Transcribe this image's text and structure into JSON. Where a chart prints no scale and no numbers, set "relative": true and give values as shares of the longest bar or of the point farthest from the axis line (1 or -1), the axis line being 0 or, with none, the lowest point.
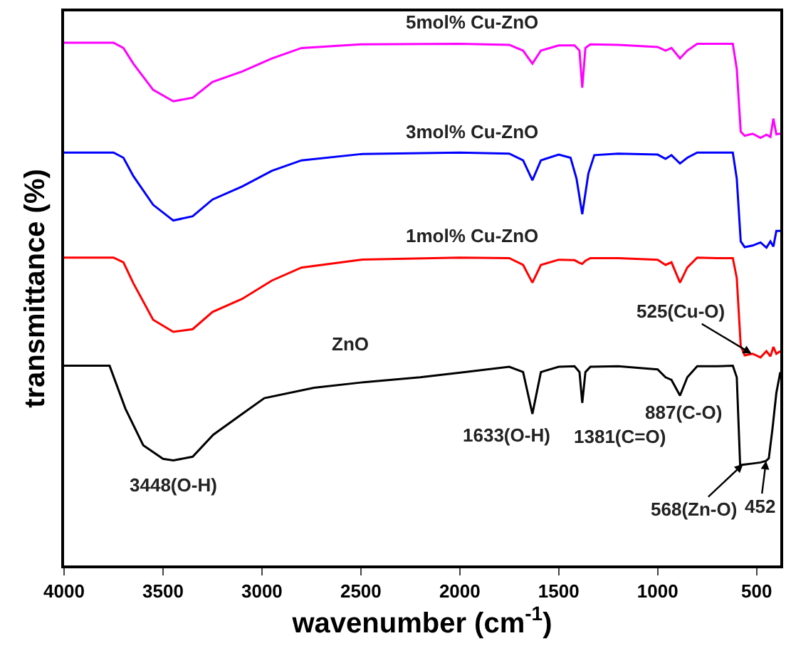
{
  "chart_data": {
    "type": "line",
    "relative": true,
    "xlabel": "wavenumber (cm$^{-1}$)",
    "ylabel": "transmittance (%)",
    "xlim": [
      4000,
      380
    ],
    "xticks": [
      4000,
      3500,
      3000,
      2500,
      2000,
      1500,
      1000,
      500
    ],
    "legend": false,
    "grid": false,
    "marker": "none",
    "line_style": "solid",
    "series": [
      {
        "name": "5mol% Cu-ZnO",
        "color": "#ff00ff",
        "x": [
          4000,
          3750,
          3700,
          3650,
          3550,
          3448,
          3350,
          3250,
          3100,
          2950,
          2800,
          2500,
          2000,
          1750,
          1680,
          1633,
          1590,
          1500,
          1420,
          1395,
          1381,
          1365,
          1340,
          1200,
          1000,
          960,
          930,
          887,
          850,
          800,
          700,
          620,
          600,
          580,
          560,
          520,
          480,
          450,
          430,
          415,
          400,
          380
        ],
        "values": [
          1,
          1,
          0.99,
          0.96,
          0.91,
          0.888,
          0.895,
          0.925,
          0.945,
          0.97,
          0.99,
          0.997,
          0.998,
          0.996,
          0.985,
          0.96,
          0.985,
          0.995,
          0.995,
          0.985,
          0.914,
          0.99,
          0.997,
          0.996,
          0.992,
          0.985,
          0.99,
          0.97,
          0.985,
          0.998,
          0.998,
          0.998,
          0.95,
          0.83,
          0.822,
          0.826,
          0.818,
          0.824,
          0.82,
          0.855,
          0.825,
          0.826
        ]
      },
      {
        "name": "3mol% Cu-ZnO",
        "color": "#0000ff",
        "x": [
          4000,
          3750,
          3700,
          3650,
          3550,
          3448,
          3350,
          3250,
          3100,
          2950,
          2800,
          2500,
          2000,
          1750,
          1680,
          1633,
          1590,
          1500,
          1440,
          1410,
          1381,
          1350,
          1320,
          1200,
          1000,
          960,
          930,
          887,
          850,
          800,
          700,
          620,
          600,
          580,
          560,
          520,
          480,
          450,
          430,
          415,
          400,
          380
        ],
        "values": [
          0.79,
          0.79,
          0.78,
          0.745,
          0.69,
          0.66,
          0.668,
          0.7,
          0.725,
          0.755,
          0.775,
          0.787,
          0.79,
          0.788,
          0.775,
          0.737,
          0.775,
          0.786,
          0.78,
          0.74,
          0.672,
          0.75,
          0.785,
          0.788,
          0.786,
          0.778,
          0.785,
          0.769,
          0.78,
          0.79,
          0.79,
          0.79,
          0.74,
          0.62,
          0.609,
          0.612,
          0.618,
          0.608,
          0.62,
          0.61,
          0.64,
          0.64
        ]
      },
      {
        "name": "1mol% Cu-ZnO",
        "color": "#ff0000",
        "x": [
          4000,
          3750,
          3700,
          3650,
          3550,
          3448,
          3350,
          3250,
          3100,
          2950,
          2800,
          2500,
          2000,
          1750,
          1680,
          1633,
          1590,
          1500,
          1420,
          1395,
          1381,
          1365,
          1340,
          1200,
          1000,
          960,
          930,
          887,
          850,
          800,
          700,
          620,
          600,
          580,
          560,
          520,
          480,
          450,
          430,
          415,
          400,
          380
        ],
        "values": [
          0.589,
          0.589,
          0.58,
          0.54,
          0.47,
          0.447,
          0.452,
          0.485,
          0.51,
          0.545,
          0.57,
          0.585,
          0.589,
          0.588,
          0.575,
          0.541,
          0.575,
          0.585,
          0.584,
          0.579,
          0.577,
          0.583,
          0.588,
          0.588,
          0.585,
          0.575,
          0.58,
          0.541,
          0.57,
          0.589,
          0.588,
          0.588,
          0.55,
          0.42,
          0.402,
          0.405,
          0.398,
          0.41,
          0.4,
          0.418,
          0.405,
          0.41
        ]
      },
      {
        "name": "ZnO",
        "color": "#000000",
        "x": [
          4000,
          3770,
          3690,
          3600,
          3500,
          3448,
          3350,
          3246,
          3100,
          2988,
          2737,
          2500,
          2200,
          1975,
          1750,
          1680,
          1633,
          1590,
          1500,
          1420,
          1395,
          1381,
          1365,
          1340,
          1200,
          1000,
          960,
          930,
          887,
          850,
          800,
          700,
          620,
          600,
          583,
          560,
          520,
          480,
          452,
          438,
          420,
          400,
          380
        ],
        "values": [
          0.382,
          0.382,
          0.3,
          0.23,
          0.204,
          0.201,
          0.208,
          0.25,
          0.29,
          0.32,
          0.34,
          0.35,
          0.36,
          0.37,
          0.38,
          0.37,
          0.29,
          0.37,
          0.38,
          0.381,
          0.37,
          0.311,
          0.37,
          0.38,
          0.381,
          0.375,
          0.36,
          0.355,
          0.325,
          0.36,
          0.381,
          0.381,
          0.382,
          0.36,
          0.192,
          0.193,
          0.195,
          0.197,
          0.2,
          0.205,
          0.26,
          0.33,
          0.37
        ]
      }
    ],
    "annotations": [
      {
        "text": "3448(O-H)",
        "x": 3448,
        "y": 0.201
      },
      {
        "text": "1633(O-H)",
        "x": 1633,
        "y": 0.29
      },
      {
        "text": "1381(C=O)",
        "x": 1381,
        "y": 0.311
      },
      {
        "text": "887(C-O)",
        "x": 887,
        "y": 0.325
      },
      {
        "text": "525(Cu-O)",
        "x": 525,
        "y": 0.405
      },
      {
        "text": "568(Zn-O)",
        "x": 568,
        "y": 0.194
      },
      {
        "text": "452",
        "x": 452,
        "y": 0.2
      }
    ]
  }
}
